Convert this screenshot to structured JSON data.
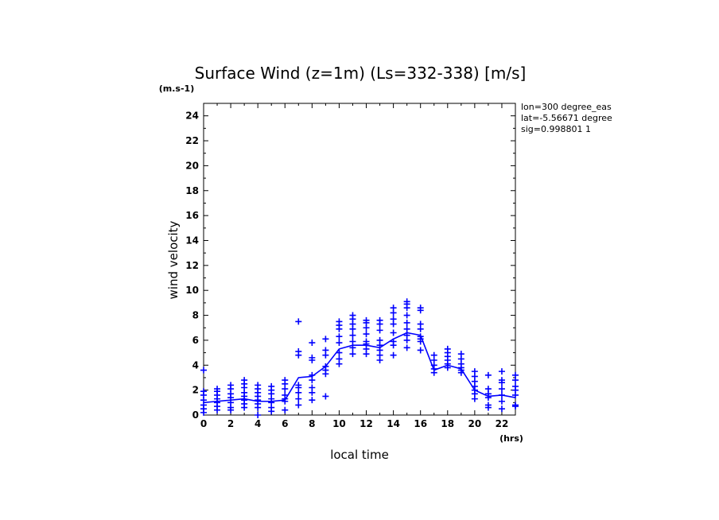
{
  "chart_data": {
    "type": "scatter",
    "title": "Surface Wind (z=1m) (Ls=332-338) [m/s]",
    "y_unit": "(m.s-1)",
    "x_unit": "(hrs)",
    "xlabel": "local time",
    "ylabel": "wind velocity",
    "xlim": [
      0,
      23
    ],
    "ylim": [
      0,
      25
    ],
    "x_ticks": [
      0,
      2,
      4,
      6,
      8,
      10,
      12,
      14,
      16,
      18,
      20,
      22
    ],
    "y_ticks": [
      0,
      2,
      4,
      6,
      8,
      10,
      12,
      14,
      16,
      18,
      20,
      22,
      24
    ],
    "annotations": [
      "lon=300 degree_eas",
      "lat=-5.56671 degree",
      "sig=0.998801 1"
    ],
    "color": "#0000ff",
    "grid": false,
    "series": [
      {
        "style": "markers-plus",
        "points": [
          [
            0,
            0.2
          ],
          [
            0,
            0.5
          ],
          [
            0,
            0.8
          ],
          [
            0,
            1.2
          ],
          [
            0,
            1.6
          ],
          [
            0,
            1.9
          ],
          [
            0,
            3.6
          ],
          [
            1,
            0.4
          ],
          [
            1,
            0.7
          ],
          [
            1,
            1.0
          ],
          [
            1,
            1.3
          ],
          [
            1,
            1.6
          ],
          [
            1,
            1.9
          ],
          [
            1,
            2.1
          ],
          [
            2,
            0.4
          ],
          [
            2,
            0.6
          ],
          [
            2,
            1.0
          ],
          [
            2,
            1.4
          ],
          [
            2,
            1.7
          ],
          [
            2,
            2.1
          ],
          [
            2,
            2.4
          ],
          [
            3,
            0.6
          ],
          [
            3,
            0.9
          ],
          [
            3,
            1.2
          ],
          [
            3,
            1.5
          ],
          [
            3,
            1.8
          ],
          [
            3,
            2.2
          ],
          [
            3,
            2.5
          ],
          [
            3,
            2.8
          ],
          [
            4,
            0.0
          ],
          [
            4,
            0.6
          ],
          [
            4,
            0.9
          ],
          [
            4,
            1.2
          ],
          [
            4,
            1.5
          ],
          [
            4,
            1.8
          ],
          [
            4,
            2.1
          ],
          [
            4,
            2.4
          ],
          [
            5,
            0.3
          ],
          [
            5,
            0.6
          ],
          [
            5,
            1.0
          ],
          [
            5,
            1.3
          ],
          [
            5,
            1.7
          ],
          [
            5,
            2.0
          ],
          [
            5,
            2.3
          ],
          [
            6,
            0.4
          ],
          [
            6,
            1.1
          ],
          [
            6,
            1.3
          ],
          [
            6,
            1.6
          ],
          [
            6,
            2.1
          ],
          [
            6,
            2.5
          ],
          [
            6,
            2.8
          ],
          [
            7,
            0.8
          ],
          [
            7,
            1.3
          ],
          [
            7,
            1.8
          ],
          [
            7,
            2.2
          ],
          [
            7,
            2.4
          ],
          [
            7,
            4.8
          ],
          [
            7,
            5.1
          ],
          [
            7,
            7.5
          ],
          [
            8,
            1.2
          ],
          [
            8,
            1.8
          ],
          [
            8,
            2.2
          ],
          [
            8,
            2.8
          ],
          [
            8,
            3.2
          ],
          [
            8,
            4.4
          ],
          [
            8,
            4.6
          ],
          [
            8,
            5.8
          ],
          [
            9,
            1.5
          ],
          [
            9,
            3.3
          ],
          [
            9,
            3.6
          ],
          [
            9,
            3.9
          ],
          [
            9,
            4.8
          ],
          [
            9,
            5.2
          ],
          [
            9,
            6.1
          ],
          [
            10,
            4.1
          ],
          [
            10,
            4.5
          ],
          [
            10,
            5.0
          ],
          [
            10,
            5.8
          ],
          [
            10,
            6.3
          ],
          [
            10,
            6.9
          ],
          [
            10,
            7.2
          ],
          [
            10,
            7.5
          ],
          [
            11,
            4.9
          ],
          [
            11,
            5.4
          ],
          [
            11,
            5.9
          ],
          [
            11,
            6.4
          ],
          [
            11,
            6.9
          ],
          [
            11,
            7.3
          ],
          [
            11,
            7.7
          ],
          [
            11,
            8.0
          ],
          [
            12,
            4.9
          ],
          [
            12,
            5.3
          ],
          [
            12,
            5.7
          ],
          [
            12,
            5.9
          ],
          [
            12,
            6.5
          ],
          [
            12,
            7.0
          ],
          [
            12,
            7.4
          ],
          [
            12,
            7.6
          ],
          [
            13,
            4.4
          ],
          [
            13,
            4.8
          ],
          [
            13,
            5.2
          ],
          [
            13,
            5.6
          ],
          [
            13,
            6.0
          ],
          [
            13,
            6.8
          ],
          [
            13,
            7.3
          ],
          [
            13,
            7.6
          ],
          [
            14,
            4.8
          ],
          [
            14,
            5.6
          ],
          [
            14,
            5.9
          ],
          [
            14,
            6.6
          ],
          [
            14,
            7.3
          ],
          [
            14,
            7.7
          ],
          [
            14,
            8.2
          ],
          [
            14,
            8.6
          ],
          [
            15,
            5.4
          ],
          [
            15,
            6.0
          ],
          [
            15,
            6.4
          ],
          [
            15,
            6.9
          ],
          [
            15,
            7.4
          ],
          [
            15,
            8.0
          ],
          [
            15,
            8.6
          ],
          [
            15,
            8.9
          ],
          [
            15,
            9.1
          ],
          [
            16,
            5.2
          ],
          [
            16,
            5.9
          ],
          [
            16,
            6.1
          ],
          [
            16,
            6.3
          ],
          [
            16,
            6.9
          ],
          [
            16,
            7.3
          ],
          [
            16,
            8.4
          ],
          [
            16,
            8.6
          ],
          [
            17,
            3.4
          ],
          [
            17,
            3.7
          ],
          [
            17,
            4.0
          ],
          [
            17,
            4.4
          ],
          [
            17,
            4.8
          ],
          [
            18,
            3.8
          ],
          [
            18,
            4.1
          ],
          [
            18,
            4.4
          ],
          [
            18,
            4.7
          ],
          [
            18,
            5.0
          ],
          [
            18,
            5.3
          ],
          [
            19,
            3.4
          ],
          [
            19,
            3.6
          ],
          [
            19,
            3.8
          ],
          [
            19,
            4.1
          ],
          [
            19,
            4.5
          ],
          [
            19,
            4.9
          ],
          [
            20,
            1.3
          ],
          [
            20,
            1.7
          ],
          [
            20,
            2.0
          ],
          [
            20,
            2.3
          ],
          [
            20,
            2.7
          ],
          [
            20,
            3.1
          ],
          [
            20,
            3.5
          ],
          [
            21,
            0.6
          ],
          [
            21,
            0.8
          ],
          [
            21,
            1.4
          ],
          [
            21,
            1.7
          ],
          [
            21,
            2.1
          ],
          [
            21,
            3.2
          ],
          [
            22,
            0.5
          ],
          [
            22,
            1.1
          ],
          [
            22,
            1.6
          ],
          [
            22,
            2.1
          ],
          [
            22,
            2.6
          ],
          [
            22,
            2.8
          ],
          [
            22,
            3.5
          ],
          [
            23,
            0.7
          ],
          [
            23,
            0.8
          ],
          [
            23,
            1.6
          ],
          [
            23,
            2.0
          ],
          [
            23,
            2.3
          ],
          [
            23,
            2.8
          ],
          [
            23,
            3.2
          ]
        ]
      },
      {
        "style": "line",
        "x": [
          0,
          1,
          2,
          3,
          4,
          5,
          6,
          7,
          8,
          9,
          10,
          11,
          12,
          13,
          14,
          15,
          16,
          17,
          18,
          19,
          20,
          21,
          22,
          23
        ],
        "values": [
          1.0,
          1.1,
          1.2,
          1.3,
          1.1,
          1.1,
          1.2,
          3.0,
          3.1,
          3.9,
          5.3,
          5.6,
          5.6,
          5.4,
          6.1,
          6.6,
          6.4,
          3.6,
          4.0,
          3.7,
          2.0,
          1.5,
          1.6,
          1.4
        ]
      }
    ]
  }
}
